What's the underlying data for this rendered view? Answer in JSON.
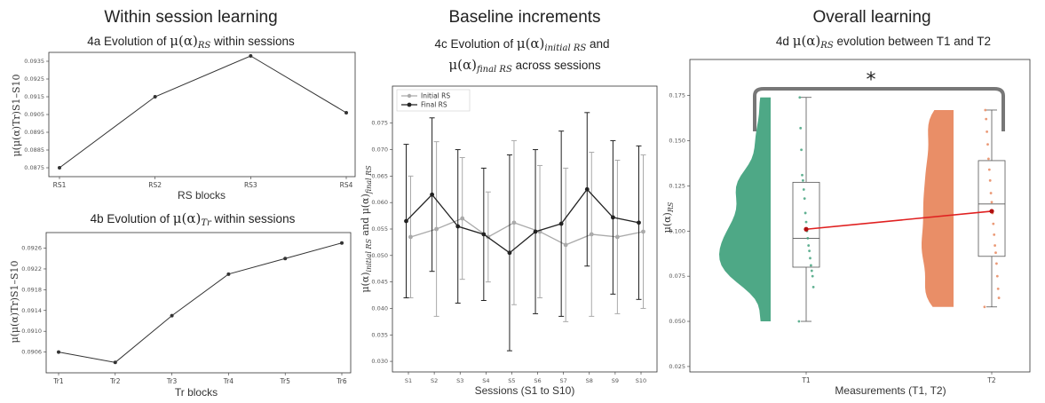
{
  "sections": {
    "left": "Within session learning",
    "middle": "Baseline increments",
    "right": "Overall learning"
  },
  "chart_data": [
    {
      "id": "4a",
      "type": "line",
      "title_prefix": "4a Evolution of ",
      "title_math": "μ(α)",
      "title_sub": "RS",
      "title_suffix": " within sessions",
      "xlabel": "RS blocks",
      "ylabel": "μ(μ(α)Tr)S1–S10",
      "categories": [
        "RS1",
        "RS2",
        "RS3",
        "RS4"
      ],
      "values": [
        0.0875,
        0.0915,
        0.0938,
        0.0906
      ],
      "ylim": [
        0.087,
        0.094
      ],
      "yticks": [
        0.0875,
        0.0885,
        0.0895,
        0.0905,
        0.0915,
        0.0925,
        0.0935
      ],
      "color": "#333333"
    },
    {
      "id": "4b",
      "type": "line",
      "title_prefix": "4b Evolution of ",
      "title_math": "μ(α)",
      "title_sub": "Tr",
      "title_suffix": " within sessions",
      "xlabel": "Tr blocks",
      "ylabel": "μ(μ(α)Tr)S1–S10",
      "categories": [
        "Tr1",
        "Tr2",
        "Tr3",
        "Tr4",
        "Tr5",
        "Tr6"
      ],
      "values": [
        0.0906,
        0.0904,
        0.0913,
        0.0921,
        0.0924,
        0.0927
      ],
      "ylim": [
        0.0902,
        0.0929
      ],
      "yticks": [
        0.0906,
        0.091,
        0.0914,
        0.0918,
        0.0922,
        0.0926
      ],
      "color": "#333333"
    },
    {
      "id": "4c",
      "type": "line",
      "title_line1_prefix": "4c Evolution of ",
      "title_line1_math": "μ(α)",
      "title_line1_sub": "initial RS",
      "title_line1_suffix": " and",
      "title_line2_math": "μ(α)",
      "title_line2_sub": "final RS",
      "title_line2_suffix": " across sessions",
      "xlabel": "Sessions (S1 to S10)",
      "ylabel_main": "μ(α)",
      "ylabel_sub1": "initial RS",
      "ylabel_mid": " and μ(α)",
      "ylabel_sub2": "final RS",
      "categories": [
        "S1",
        "S2",
        "S3",
        "S4",
        "S5",
        "S6",
        "S7",
        "S8",
        "S9",
        "S10"
      ],
      "ylim": [
        0.028,
        0.082
      ],
      "yticks": [
        0.03,
        0.035,
        0.04,
        0.045,
        0.05,
        0.055,
        0.06,
        0.065,
        0.07,
        0.075
      ],
      "legend_position": "top-left",
      "series": [
        {
          "name": "Initial RS",
          "color": "#aaaaaa",
          "values": [
            0.0535,
            0.055,
            0.057,
            0.0535,
            0.0562,
            0.0545,
            0.052,
            0.054,
            0.0535,
            0.0545
          ],
          "errors": [
            0.0115,
            0.0165,
            0.0115,
            0.0085,
            0.0155,
            0.0125,
            0.0145,
            0.0155,
            0.0145,
            0.0145
          ]
        },
        {
          "name": "Final RS",
          "color": "#222222",
          "values": [
            0.0565,
            0.0615,
            0.0555,
            0.054,
            0.0505,
            0.0545,
            0.056,
            0.0625,
            0.0572,
            0.0562
          ],
          "errors": [
            0.0145,
            0.0145,
            0.0145,
            0.0125,
            0.0185,
            0.0155,
            0.0175,
            0.0145,
            0.0145,
            0.0145
          ]
        }
      ]
    },
    {
      "id": "4d",
      "type": "box",
      "title_prefix": "4d ",
      "title_math": "μ(α)",
      "title_sub": "RS",
      "title_suffix": " evolution between T1 and T2",
      "xlabel": "Measurements (T1, T2)",
      "ylabel_main": "μ(α)",
      "ylabel_sub": "RS",
      "categories": [
        "T1",
        "T2"
      ],
      "ylim": [
        0.022,
        0.195
      ],
      "yticks": [
        0.025,
        0.05,
        0.075,
        0.1,
        0.125,
        0.15,
        0.175
      ],
      "significance": "*",
      "groups": [
        {
          "name": "T1",
          "color": "#45a37f",
          "min": 0.05,
          "q1": 0.08,
          "median": 0.096,
          "q3": 0.127,
          "max": 0.174,
          "mean": 0.101,
          "points": [
            0.05,
            0.069,
            0.075,
            0.078,
            0.081,
            0.085,
            0.089,
            0.092,
            0.096,
            0.1,
            0.105,
            0.11,
            0.118,
            0.123,
            0.128,
            0.131,
            0.145,
            0.157,
            0.174
          ]
        },
        {
          "name": "T2",
          "color": "#e8885f",
          "min": 0.058,
          "q1": 0.086,
          "median": 0.115,
          "q3": 0.139,
          "max": 0.167,
          "mean": 0.111,
          "points": [
            0.058,
            0.063,
            0.068,
            0.075,
            0.082,
            0.088,
            0.092,
            0.098,
            0.104,
            0.11,
            0.116,
            0.121,
            0.128,
            0.134,
            0.14,
            0.148,
            0.155,
            0.162,
            0.167
          ]
        }
      ]
    }
  ]
}
